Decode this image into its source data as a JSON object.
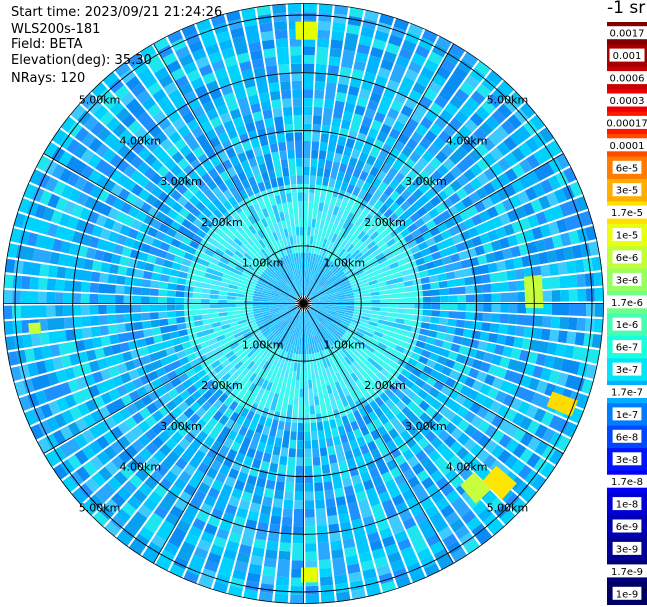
{
  "header": {
    "start_time": "Start time: 2023/09/21 21:24:26",
    "instrument": "WLS200s-181",
    "field": "Field: BETA",
    "elevation": "Elevation(deg): 35.30",
    "nrays": "NRays: 120"
  },
  "colorbar": {
    "unit_label": "-1 sr",
    "labels": [
      "0.0017",
      "0.001",
      "0.0006",
      "0.0003",
      "0.00017",
      "0.0001",
      "6e-5",
      "3e-5",
      "1.7e-5",
      "1e-5",
      "6e-6",
      "3e-6",
      "1.7e-6",
      "1e-6",
      "6e-7",
      "3e-7",
      "1.7e-7",
      "1e-7",
      "6e-8",
      "3e-8",
      "1.7e-8",
      "1e-8",
      "6e-9",
      "3e-9",
      "1.7e-9",
      "1e-9"
    ],
    "colors": [
      "#800000",
      "#a50000",
      "#c80000",
      "#ee0000",
      "#ff1800",
      "#ff4a00",
      "#ff7c00",
      "#ffae00",
      "#ffe000",
      "#e9ff0d",
      "#c0ff37",
      "#97ff60",
      "#6dff8a",
      "#44ffb3",
      "#1affdd",
      "#00e4f8",
      "#00b0ff",
      "#007cff",
      "#0048ff",
      "#0014ff",
      "#0000f6",
      "#0000d1",
      "#0000b2",
      "#000094",
      "#00007a",
      "#000064"
    ]
  },
  "chart_data": {
    "type": "heatmap",
    "projection": "polar PPI scan",
    "field": "BETA",
    "elevation_deg": 35.3,
    "n_rays": 120,
    "range_ring_labels": [
      "1.00km",
      "2.00km",
      "3.00km",
      "4.00km",
      "5.00km"
    ],
    "range_ring_label_positions": "four diagonal quadrants",
    "max_range_km": 5.2,
    "color_scale": "log",
    "value_range": [
      1e-09,
      0.0017
    ],
    "dominant_value_band": "1e-8 to 1e-7",
    "notable_features": [
      "weak high values (~1e-6 to 1e-5) near east edge",
      "yellow patches (~1e-5) in south-east near 4.00km"
    ]
  },
  "colors": {
    "background": "#ffffff",
    "grid": "#000000",
    "ray_gap": "#ffffff"
  }
}
